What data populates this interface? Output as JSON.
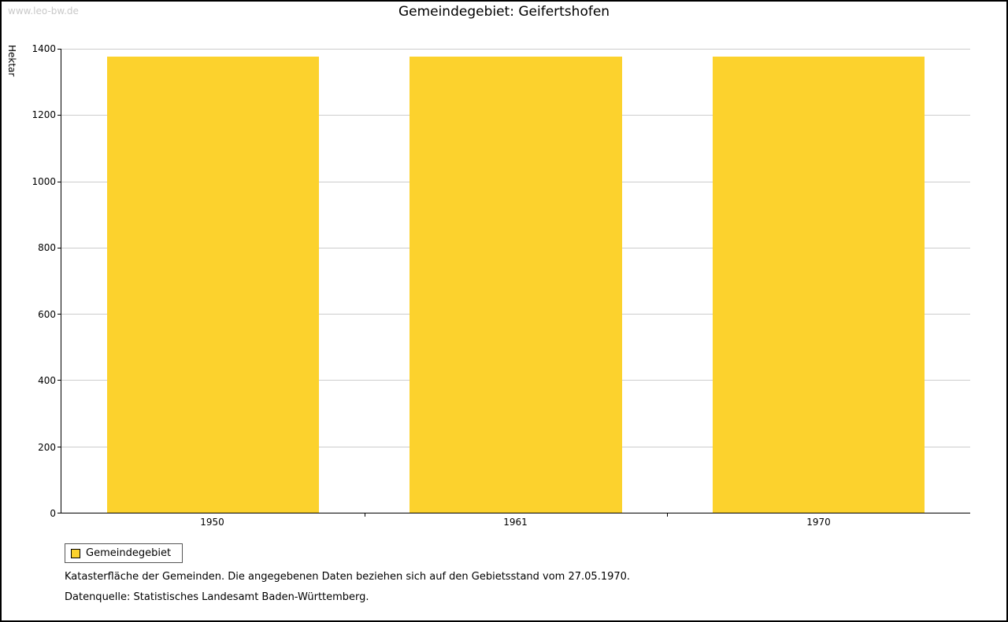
{
  "watermark": "www.leo-bw.de",
  "title": "Gemeindegebiet: Geifertshofen",
  "chart_data": {
    "type": "bar",
    "title": "Gemeindegebiet: Geifertshofen",
    "categories": [
      "1950",
      "1961",
      "1970"
    ],
    "series": [
      {
        "name": "Gemeindegebiet",
        "values": [
          1376,
          1376,
          1376
        ]
      }
    ],
    "xlabel": "",
    "ylabel": "Hektar",
    "ylim": [
      0,
      1400
    ],
    "ytick_step": 200,
    "bar_color": "#FCD22D",
    "grid": true,
    "legend_position": "bottom-left"
  },
  "legend": {
    "label": "Gemeindegebiet"
  },
  "footnotes": [
    "Katasterfläche der Gemeinden. Die angegebenen Daten beziehen sich auf den Gebietsstand vom 27.05.1970.",
    "Datenquelle: Statistisches Landesamt Baden-Württemberg."
  ]
}
